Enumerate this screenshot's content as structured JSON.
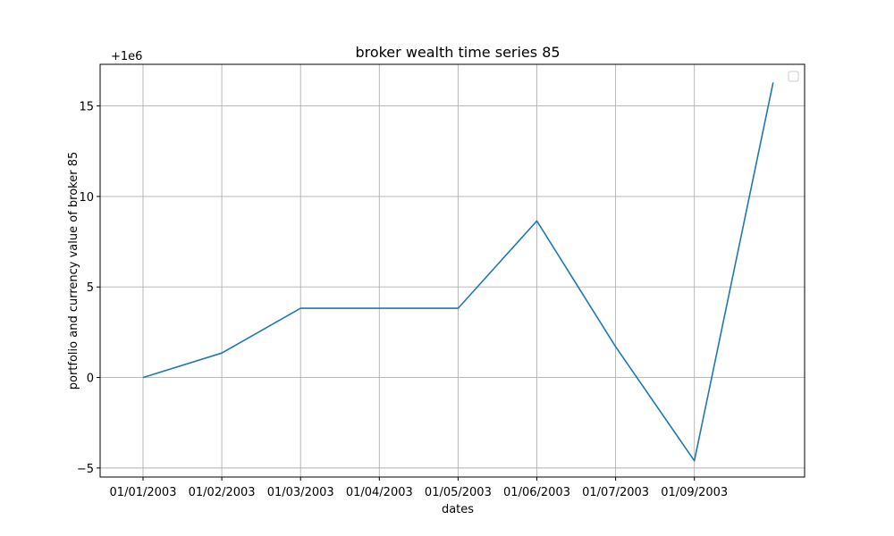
{
  "chart_data": {
    "type": "line",
    "title": "broker wealth time series 85",
    "xlabel": "dates",
    "ylabel": "portfolio and currency value of broker 85",
    "y_offset_label": "+1e6",
    "x_tick_labels": [
      "01/01/2003",
      "01/02/2003",
      "01/03/2003",
      "01/04/2003",
      "01/05/2003",
      "01/06/2003",
      "01/07/2003",
      "01/09/2003"
    ],
    "y_tick_labels": [
      "−5",
      "0",
      "5",
      "10",
      "15"
    ],
    "y_ticks": [
      -5,
      0,
      5,
      10,
      15
    ],
    "ylim": [
      -5.5,
      17.3
    ],
    "grid": true,
    "legend": "upper right, empty",
    "series": [
      {
        "color": "#1f77b4",
        "points": [
          {
            "x": "01/01/2003",
            "y": 0
          },
          {
            "x": "01/02/2003",
            "y": 1.35
          },
          {
            "x": "01/03/2003",
            "y": 3.82
          },
          {
            "x": "01/04/2003",
            "y": 3.82
          },
          {
            "x": "01/05/2003",
            "y": 3.82
          },
          {
            "x": "01/06/2003",
            "y": 8.65
          },
          {
            "x": "01/07/2003",
            "y": 1.7
          },
          {
            "x": "01/09/2003",
            "y": -4.6
          },
          {
            "x": "01/10/2003",
            "y": 16.3
          }
        ]
      }
    ]
  }
}
